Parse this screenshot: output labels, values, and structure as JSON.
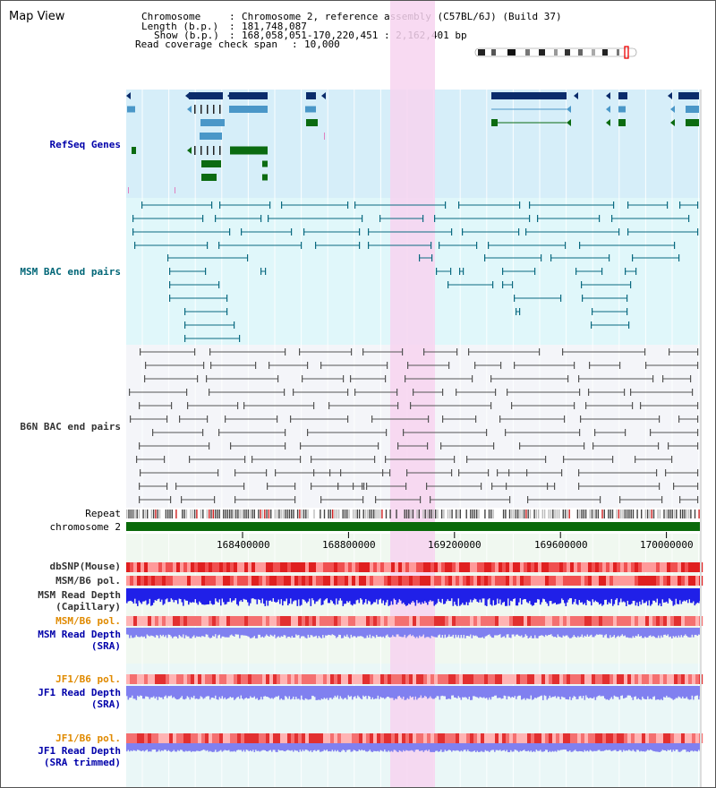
{
  "app": {
    "title": "Map View"
  },
  "info": {
    "chromosome_key": "Chromosome",
    "chromosome_value": "Chromosome 2, reference assembly (C57BL/6J) (Build 37)",
    "length_key": "Length (b.p.)",
    "length_value": "181,748,087",
    "show_key": "Show (b.p.)",
    "show_value": "168,058,051-170,220,451 : 2,162,401 bp",
    "coverage_key": "Read coverage check span",
    "coverage_value": "10,000"
  },
  "tracks": {
    "refseq": "RefSeq Genes",
    "msm_bac": "MSM BAC end pairs",
    "b6n_bac": "B6N BAC end pairs",
    "repeat": "Repeat",
    "chromosome": "chromosome 2",
    "dbsnp": "dbSNP(Mouse)",
    "msm_b6_pol": "MSM/B6 pol.",
    "msm_depth_cap_1": "MSM Read Depth",
    "msm_depth_cap_2": "(Capillary)",
    "msm_b6_pol2": "MSM/B6 pol.",
    "msm_depth_sra_1": "MSM Read Depth",
    "msm_depth_sra_2": "(SRA)",
    "jf1_b6_pol": "JF1/B6 pol.",
    "jf1_depth_sra_1": "JF1 Read Depth",
    "jf1_depth_sra_2": "(SRA)",
    "jf1_b6_pol2": "JF1/B6 pol.",
    "jf1_trim_1": "JF1 Read Depth",
    "jf1_trim_2": "(SRA trimmed)"
  },
  "axis": {
    "ticks": [
      "168400000",
      "168800000",
      "169200000",
      "169600000",
      "170000000"
    ]
  },
  "colors": {
    "highlight": "#f7d3f0",
    "refseq_bg": "#d6eef9",
    "msm_bg": "#e0f7fa",
    "b6n_bg": "#f4f5f9",
    "gene_dark": "#0b2c6b",
    "gene_light": "#4a97c8",
    "gene_green": "#0b6b11",
    "chromosome_bar": "#0a6a0a",
    "depth_blue": "#2020e8",
    "depth_light": "#8080f0",
    "snp_red": "#f03838"
  }
}
